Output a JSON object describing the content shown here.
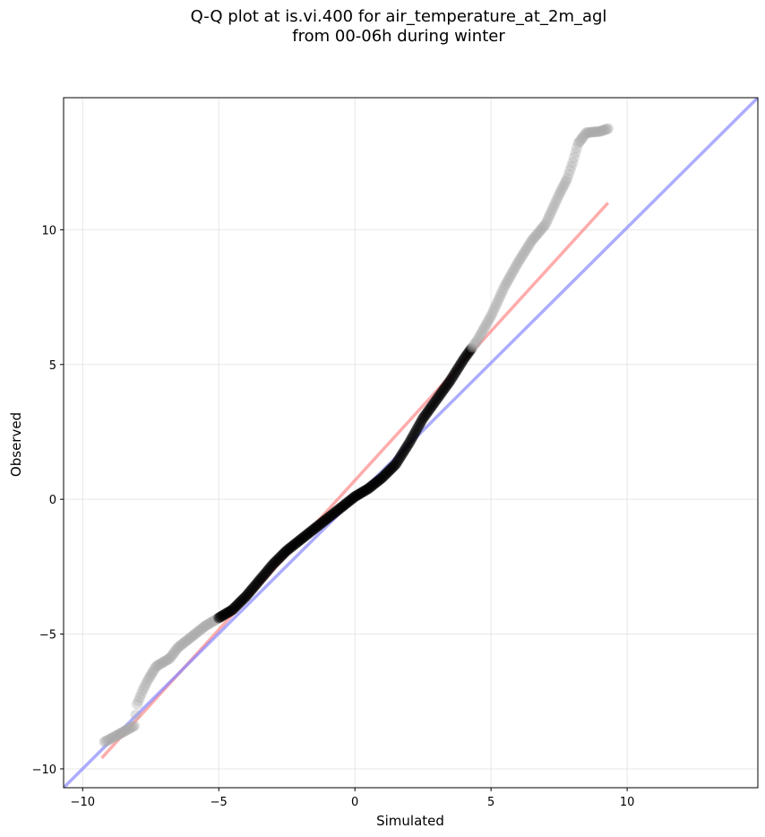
{
  "chart_data": {
    "type": "scatter",
    "title": "Q-Q plot at is.vi.400 for air_temperature_at_2m_agl\nfrom 00-06h during winter",
    "xlabel": "Simulated",
    "ylabel": "Observed",
    "xlim": [
      -10.7,
      14.8
    ],
    "ylim": [
      -10.7,
      14.9
    ],
    "xticks": [
      -10,
      -5,
      0,
      5,
      10
    ],
    "yticks": [
      -10,
      -5,
      0,
      5,
      10
    ],
    "xtick_labels": [
      "−10",
      "−5",
      "0",
      "5",
      "10"
    ],
    "ytick_labels": [
      "−10",
      "−5",
      "0",
      "5",
      "10"
    ],
    "grid": true,
    "quantile_anchors": [
      [
        -9.2,
        -9.0
      ],
      [
        -9.0,
        -8.9
      ],
      [
        -8.1,
        -8.4
      ],
      [
        -8.0,
        -7.6
      ],
      [
        -7.8,
        -7.1
      ],
      [
        -7.6,
        -6.7
      ],
      [
        -7.3,
        -6.2
      ],
      [
        -6.8,
        -5.9
      ],
      [
        -6.5,
        -5.5
      ],
      [
        -6.0,
        -5.1
      ],
      [
        -5.5,
        -4.7
      ],
      [
        -5.0,
        -4.4
      ],
      [
        -4.5,
        -4.1
      ],
      [
        -4.0,
        -3.6
      ],
      [
        -3.5,
        -3.0
      ],
      [
        -3.0,
        -2.4
      ],
      [
        -2.5,
        -1.9
      ],
      [
        -2.0,
        -1.5
      ],
      [
        -1.5,
        -1.1
      ],
      [
        -1.0,
        -0.7
      ],
      [
        -0.5,
        -0.3
      ],
      [
        0.0,
        0.1
      ],
      [
        0.5,
        0.4
      ],
      [
        1.0,
        0.8
      ],
      [
        1.5,
        1.3
      ],
      [
        2.0,
        2.1
      ],
      [
        2.5,
        3.0
      ],
      [
        3.0,
        3.7
      ],
      [
        3.5,
        4.4
      ],
      [
        4.0,
        5.2
      ],
      [
        4.5,
        5.9
      ],
      [
        5.0,
        6.8
      ],
      [
        5.5,
        7.9
      ],
      [
        6.0,
        8.8
      ],
      [
        6.5,
        9.6
      ],
      [
        7.0,
        10.2
      ],
      [
        7.5,
        11.3
      ],
      [
        7.8,
        11.9
      ],
      [
        8.0,
        12.5
      ],
      [
        8.2,
        13.2
      ],
      [
        8.5,
        13.6
      ],
      [
        9.0,
        13.65
      ],
      [
        9.3,
        13.75
      ]
    ],
    "reference_lines": [
      {
        "color": "#ff7f7f",
        "points": [
          [
            -9.3,
            -9.6
          ],
          [
            9.3,
            11.0
          ]
        ]
      },
      {
        "color": "#7f7fff",
        "points": [
          [
            -10.7,
            -10.7
          ],
          [
            14.8,
            14.9
          ]
        ]
      }
    ],
    "colors": {
      "points": "#000000",
      "tail_points": "#aaaaaa",
      "grid": "#dddddd",
      "fit_line": "#ff7f7f",
      "identity_line": "#7f7fff"
    }
  }
}
